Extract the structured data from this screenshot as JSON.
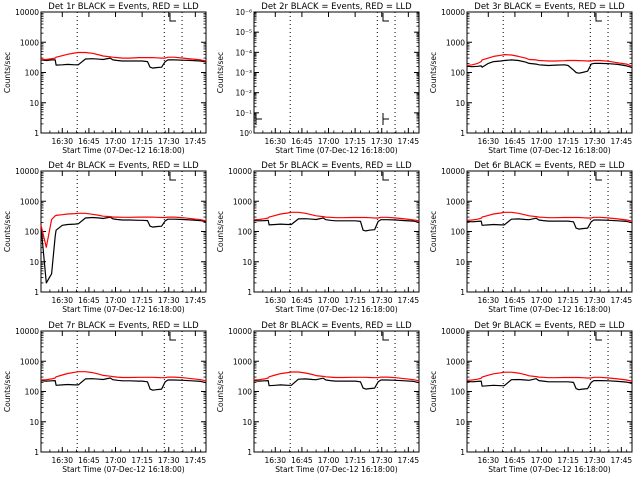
{
  "chart_data": {
    "type": "line",
    "layout": "3x3 grid of panels",
    "x_tick_labels": [
      "16:30",
      "16:45",
      "17:00",
      "17:15",
      "17:30",
      "17:45"
    ],
    "x_range_minutes_after_16_18": [
      0,
      93
    ],
    "x_tick_minutes_after_16_18": [
      12,
      27,
      42,
      57,
      72,
      87
    ],
    "xlabel": "Start Time (07-Dec-12 16:18:00)",
    "ylabel": "Counts/sec",
    "vertical_dotted_lines_minutes_after_16_18": [
      20.4,
      69.5,
      79.5
    ],
    "colors": {
      "events": "#000000",
      "lld": "#ff0000"
    },
    "series_time_minutes": [
      0,
      3,
      6,
      8,
      8.5,
      12,
      15,
      19,
      21,
      25,
      29,
      33,
      35,
      39,
      40.5,
      43,
      46,
      50,
      55,
      57,
      60,
      61.5,
      63,
      65,
      68,
      70,
      71.5,
      75,
      80,
      85,
      90,
      93
    ],
    "panels": [
      {
        "id": "det1r",
        "title": "Det 1r BLACK = Events, RED = LLD",
        "yscale": "log",
        "ylim": [
          1,
          10000
        ],
        "y_tick_labels": [
          "1",
          "10",
          "100",
          "1000",
          "10000"
        ],
        "series": [
          {
            "name": "Events",
            "color": "#000000",
            "y": [
              260,
              250,
              260,
              260,
              175,
              180,
              185,
              180,
              180,
              280,
              285,
              275,
              270,
              300,
              260,
              250,
              240,
              240,
              240,
              240,
              230,
              150,
              140,
              145,
              150,
              230,
              260,
              260,
              255,
              250,
              240,
              220
            ]
          },
          {
            "name": "LLD",
            "color": "#ff0000",
            "y": [
              270,
              270,
              285,
              300,
              320,
              360,
              400,
              440,
              460,
              460,
              430,
              380,
              350,
              330,
              320,
              310,
              300,
              300,
              310,
              310,
              310,
              310,
              310,
              305,
              300,
              300,
              320,
              320,
              300,
              280,
              260,
              240
            ]
          }
        ]
      },
      {
        "id": "det2r",
        "title": "Det 2r BLACK = Events, RED = LLD",
        "yscale": "log",
        "ylim": [
          1,
          1e-06
        ],
        "y_tick_labels": [
          "10⁰",
          "10⁻¹",
          "10⁻²",
          "10⁻³",
          "10⁻⁴",
          "10⁻⁵",
          "10⁻⁶"
        ],
        "series": []
      },
      {
        "id": "det3r",
        "title": "Det 3r BLACK = Events, RED = LLD",
        "yscale": "log",
        "ylim": [
          1,
          10000
        ],
        "y_tick_labels": [
          "1",
          "10",
          "100",
          "1000",
          "10000"
        ],
        "series": [
          {
            "name": "Events",
            "color": "#000000",
            "y": [
              160,
              155,
              160,
              165,
              150,
              200,
              230,
              240,
              250,
              260,
              250,
              220,
              200,
              190,
              180,
              175,
              170,
              175,
              180,
              170,
              120,
              100,
              95,
              100,
              110,
              190,
              200,
              200,
              195,
              185,
              165,
              145
            ]
          },
          {
            "name": "LLD",
            "color": "#ff0000",
            "y": [
              170,
              180,
              200,
              230,
              260,
              300,
              340,
              370,
              390,
              380,
              340,
              300,
              270,
              260,
              250,
              245,
              240,
              240,
              245,
              250,
              250,
              250,
              248,
              245,
              240,
              240,
              250,
              250,
              235,
              210,
              190,
              160
            ]
          }
        ]
      },
      {
        "id": "det4r",
        "title": "Det 4r BLACK = Events, RED = LLD",
        "yscale": "log",
        "ylim": [
          1,
          10000
        ],
        "y_tick_labels": [
          "1",
          "10",
          "100",
          "1000",
          "10000"
        ],
        "series": [
          {
            "name": "Events",
            "color": "#000000",
            "y": [
              150,
              2,
              4,
              70,
              110,
              160,
              170,
              175,
              180,
              280,
              290,
              280,
              270,
              300,
              260,
              250,
              240,
              240,
              235,
              235,
              230,
              150,
              140,
              145,
              150,
              225,
              255,
              255,
              250,
              240,
              230,
              210
            ]
          },
          {
            "name": "LLD",
            "color": "#ff0000",
            "y": [
              160,
              30,
              250,
              330,
              340,
              360,
              380,
              390,
              400,
              400,
              370,
              340,
              320,
              310,
              300,
              300,
              295,
              295,
              300,
              300,
              300,
              300,
              300,
              295,
              290,
              290,
              300,
              300,
              285,
              265,
              245,
              225
            ]
          }
        ]
      },
      {
        "id": "det5r",
        "title": "Det 5r BLACK = Events, RED = LLD",
        "yscale": "log",
        "ylim": [
          1,
          10000
        ],
        "y_tick_labels": [
          "1",
          "10",
          "100",
          "1000",
          "10000"
        ],
        "series": [
          {
            "name": "Events",
            "color": "#000000",
            "y": [
              230,
              225,
              230,
              235,
              165,
              170,
              175,
              170,
              170,
              260,
              265,
              255,
              250,
              280,
              245,
              235,
              225,
              225,
              225,
              225,
              215,
              110,
              105,
              110,
              115,
              215,
              245,
              245,
              240,
              230,
              220,
              200
            ]
          },
          {
            "name": "LLD",
            "color": "#ff0000",
            "y": [
              245,
              250,
              265,
              280,
              300,
              340,
              380,
              410,
              430,
              430,
              400,
              355,
              330,
              310,
              300,
              295,
              285,
              285,
              290,
              290,
              290,
              290,
              290,
              285,
              280,
              280,
              295,
              295,
              280,
              260,
              240,
              225
            ]
          }
        ]
      },
      {
        "id": "det6r",
        "title": "Det 6r BLACK = Events, RED = LLD",
        "yscale": "log",
        "ylim": [
          1,
          10000
        ],
        "y_tick_labels": [
          "1",
          "10",
          "100",
          "1000",
          "10000"
        ],
        "series": [
          {
            "name": "Events",
            "color": "#000000",
            "y": [
              215,
              210,
              215,
              220,
              160,
              165,
              170,
              165,
              165,
              255,
              260,
              250,
              245,
              275,
              240,
              230,
              220,
              220,
              220,
              220,
              210,
              130,
              120,
              125,
              130,
              210,
              240,
              240,
              235,
              225,
              215,
              195
            ]
          },
          {
            "name": "LLD",
            "color": "#ff0000",
            "y": [
              235,
              240,
              255,
              275,
              300,
              340,
              380,
              410,
              430,
              430,
              400,
              355,
              330,
              310,
              300,
              295,
              285,
              285,
              290,
              290,
              290,
              290,
              290,
              285,
              280,
              280,
              295,
              295,
              280,
              260,
              240,
              220
            ]
          }
        ]
      },
      {
        "id": "det7r",
        "title": "Det 7r BLACK = Events, RED = LLD",
        "yscale": "log",
        "ylim": [
          1,
          10000
        ],
        "y_tick_labels": [
          "1",
          "10",
          "100",
          "1000",
          "10000"
        ],
        "series": [
          {
            "name": "Events",
            "color": "#000000",
            "y": [
              225,
              220,
              225,
              230,
              160,
              165,
              170,
              165,
              165,
              260,
              265,
              255,
              250,
              280,
              245,
              235,
              225,
              225,
              220,
              220,
              210,
              120,
              110,
              115,
              120,
              210,
              240,
              240,
              235,
              225,
              215,
              195
            ]
          },
          {
            "name": "LLD",
            "color": "#ff0000",
            "y": [
              240,
              245,
              260,
              280,
              305,
              350,
              395,
              430,
              450,
              450,
              420,
              370,
              340,
              320,
              310,
              300,
              290,
              290,
              295,
              295,
              295,
              295,
              295,
              290,
              285,
              285,
              300,
              300,
              285,
              265,
              245,
              225
            ]
          }
        ]
      },
      {
        "id": "det8r",
        "title": "Det 8r BLACK = Events, RED = LLD",
        "yscale": "log",
        "ylim": [
          1,
          10000
        ],
        "y_tick_labels": [
          "1",
          "10",
          "100",
          "1000",
          "10000"
        ],
        "series": [
          {
            "name": "Events",
            "color": "#000000",
            "y": [
              225,
              220,
              225,
              230,
              155,
              160,
              165,
              160,
              160,
              255,
              260,
              250,
              245,
              275,
              240,
              230,
              220,
              220,
              220,
              220,
              210,
              130,
              120,
              125,
              130,
              210,
              240,
              240,
              235,
              225,
              215,
              195
            ]
          },
          {
            "name": "LLD",
            "color": "#ff0000",
            "y": [
              240,
              245,
              260,
              280,
              305,
              350,
              390,
              420,
              440,
              440,
              410,
              365,
              335,
              315,
              305,
              300,
              290,
              290,
              295,
              295,
              295,
              295,
              295,
              290,
              285,
              285,
              300,
              300,
              285,
              265,
              245,
              225
            ]
          }
        ]
      },
      {
        "id": "det9r",
        "title": "Det 9r BLACK = Events, RED = LLD",
        "yscale": "log",
        "ylim": [
          1,
          10000
        ],
        "y_tick_labels": [
          "1",
          "10",
          "100",
          "1000",
          "10000"
        ],
        "series": [
          {
            "name": "Events",
            "color": "#000000",
            "y": [
              215,
              210,
              215,
              220,
              150,
              155,
              160,
              155,
              155,
              245,
              250,
              240,
              235,
              265,
              230,
              220,
              210,
              210,
              210,
              210,
              200,
              125,
              115,
              120,
              125,
              200,
              230,
              230,
              225,
              215,
              205,
              185
            ]
          },
          {
            "name": "LLD",
            "color": "#ff0000",
            "y": [
              235,
              240,
              255,
              275,
              300,
              345,
              385,
              415,
              435,
              435,
              405,
              360,
              330,
              310,
              300,
              295,
              285,
              285,
              290,
              290,
              290,
              290,
              290,
              285,
              280,
              280,
              295,
              295,
              280,
              260,
              240,
              220
            ]
          }
        ]
      }
    ]
  }
}
